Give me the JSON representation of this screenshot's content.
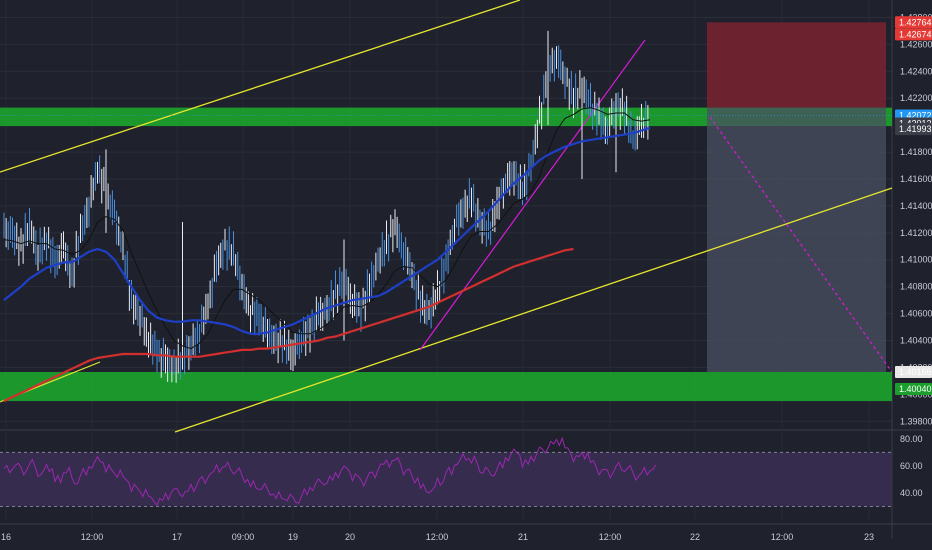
{
  "chart_data": [
    {
      "type": "candlestick",
      "instrument_price_axis": {
        "ticks": [
          "1.42800",
          "1.42600",
          "1.42400",
          "1.42200",
          "1.42000",
          "1.41800",
          "1.41600",
          "1.41400",
          "1.41200",
          "1.41000",
          "1.40800",
          "1.40600",
          "1.40400",
          "1.40200",
          "1.40000",
          "1.39800"
        ],
        "ylim": [
          1.3975,
          1.429
        ]
      },
      "x_ticks": [
        "16",
        "12:00",
        "17",
        "09:00",
        "19",
        "20",
        "12:00",
        "21",
        "12:00",
        "22",
        "12:00",
        "23"
      ],
      "price_badges": [
        {
          "label": "1.42764",
          "color": "#e53935"
        },
        {
          "label": "1.42674",
          "color": "#e53935"
        },
        {
          "label": "1.42072",
          "color": "#2196f3"
        },
        {
          "label": "06:30",
          "color": "#2196f3"
        },
        {
          "label": "1.42012",
          "color": "#3a3d48"
        },
        {
          "label": "1.41993",
          "color": "#3a3d48"
        },
        {
          "label": "1.40166",
          "color": "#e8e8e8"
        },
        {
          "label": "1.40040",
          "color": "#1b9e2c"
        }
      ],
      "last_price": 1.42072,
      "close_series": [
        1.4122,
        1.4118,
        1.411,
        1.4125,
        1.4105,
        1.4115,
        1.4098,
        1.4108,
        1.4088,
        1.412,
        1.414,
        1.4168,
        1.415,
        1.4132,
        1.4108,
        1.407,
        1.4058,
        1.4042,
        1.403,
        1.4025,
        1.402,
        1.4028,
        1.4035,
        1.4048,
        1.4065,
        1.4095,
        1.411,
        1.4105,
        1.408,
        1.4062,
        1.4058,
        1.4045,
        1.404,
        1.4038,
        1.403,
        1.4042,
        1.4048,
        1.4058,
        1.4062,
        1.4075,
        1.4085,
        1.407,
        1.4062,
        1.408,
        1.4098,
        1.4112,
        1.4125,
        1.4108,
        1.409,
        1.4068,
        1.406,
        1.4075,
        1.4098,
        1.4125,
        1.4138,
        1.4145,
        1.4128,
        1.412,
        1.414,
        1.4158,
        1.4165,
        1.415,
        1.417,
        1.4205,
        1.424,
        1.4252,
        1.4235,
        1.422,
        1.4228,
        1.4215,
        1.4205,
        1.4198,
        1.4215,
        1.421,
        1.419,
        1.42,
        1.4207
      ],
      "moving_averages": [
        {
          "color": "#111111",
          "values": [
            1.4115,
            1.4114,
            1.4112,
            1.4114,
            1.4112,
            1.4112,
            1.4108,
            1.4107,
            1.4104,
            1.4107,
            1.4115,
            1.4128,
            1.4132,
            1.413,
            1.4122,
            1.4105,
            1.409,
            1.4075,
            1.4062,
            1.405,
            1.404,
            1.4036,
            1.4034,
            1.4038,
            1.4045,
            1.4058,
            1.407,
            1.4078,
            1.4078,
            1.4074,
            1.407,
            1.4064,
            1.4058,
            1.4052,
            1.4046,
            1.4045,
            1.4045,
            1.4048,
            1.4052,
            1.4058,
            1.4065,
            1.4066,
            1.4065,
            1.4068,
            1.4074,
            1.4082,
            1.4092,
            1.4095,
            1.4094,
            1.4088,
            1.4082,
            1.408,
            1.4085,
            1.4096,
            1.4108,
            1.4118,
            1.4121,
            1.4121,
            1.4126,
            1.4134,
            1.4142,
            1.4145,
            1.415,
            1.4162,
            1.418,
            1.4196,
            1.4205,
            1.4208,
            1.4212,
            1.4213,
            1.4211,
            1.4208,
            1.4209,
            1.4209,
            1.4204,
            1.4203,
            1.4204
          ]
        },
        {
          "color": "#1e40c8",
          "values": [
            1.407,
            1.4075,
            1.408,
            1.4086,
            1.409,
            1.4094,
            1.4096,
            1.4098,
            1.4098,
            1.4102,
            1.4106,
            1.4108,
            1.4106,
            1.41,
            1.409,
            1.408,
            1.407,
            1.4062,
            1.4057,
            1.4055,
            1.4054,
            1.4054,
            1.4055,
            1.4055,
            1.4054,
            1.4053,
            1.4052,
            1.405,
            1.4047,
            1.4045,
            1.4045,
            1.4046,
            1.4048,
            1.405,
            1.4052,
            1.4055,
            1.4058,
            1.4061,
            1.4064,
            1.4066,
            1.4068,
            1.407,
            1.4071,
            1.4072,
            1.4073,
            1.4076,
            1.408,
            1.4084,
            1.4088,
            1.4092,
            1.4096,
            1.41,
            1.4106,
            1.4112,
            1.4118,
            1.4124,
            1.413,
            1.4136,
            1.4143,
            1.415,
            1.4157,
            1.4162,
            1.4168,
            1.4174,
            1.4178,
            1.4181,
            1.4184,
            1.4186,
            1.4188,
            1.4189,
            1.419,
            1.4191,
            1.4192,
            1.4193,
            1.4194,
            1.4196,
            1.4198
          ]
        },
        {
          "color": "#d32f2f",
          "values": [
            1.3995,
            1.3998,
            1.4001,
            1.4004,
            1.4007,
            1.401,
            1.4013,
            1.4016,
            1.4019,
            1.4022,
            1.4025,
            1.4027,
            1.4028,
            1.4029,
            1.403,
            1.403,
            1.403,
            1.403,
            1.4029,
            1.4029,
            1.4028,
            1.4028,
            1.4028,
            1.4028,
            1.4029,
            1.403,
            1.4031,
            1.4032,
            1.4033,
            1.4033,
            1.4034,
            1.4034,
            1.4035,
            1.4036,
            1.4037,
            1.4038,
            1.4039,
            1.404,
            1.4042,
            1.4043,
            1.4045,
            1.4047,
            1.4049,
            1.4051,
            1.4053,
            1.4055,
            1.4057,
            1.4059,
            1.4061,
            1.4063,
            1.4065,
            1.4068,
            1.4071,
            1.4074,
            1.4077,
            1.408,
            1.4083,
            1.4086,
            1.4089,
            1.4092,
            1.4095,
            1.4097,
            1.4099,
            1.4101,
            1.4103,
            1.4105,
            1.4107,
            1.4108
          ]
        }
      ],
      "zones": [
        {
          "name": "resistance",
          "y": [
            1.41993,
            1.4213
          ],
          "color": "#1b9e2c"
        },
        {
          "name": "support",
          "y": [
            1.3995,
            1.40166
          ],
          "color": "#1b9e2c"
        }
      ],
      "trade_box": {
        "stop": [
          1.4213,
          1.42764
        ],
        "target": [
          1.40166,
          1.4213
        ],
        "stop_color": "#7a2230",
        "target_color": "#4a5060"
      },
      "oscillator": {
        "ticks": [
          "80.00",
          "60.00",
          "40.00"
        ],
        "ylim": [
          20,
          85
        ],
        "band": [
          30,
          70
        ],
        "line_color": "#9c27b0",
        "values": [
          58,
          60,
          56,
          62,
          54,
          58,
          50,
          56,
          48,
          55,
          60,
          64,
          58,
          54,
          50,
          44,
          40,
          36,
          34,
          38,
          42,
          40,
          44,
          50,
          54,
          58,
          60,
          56,
          50,
          46,
          44,
          40,
          38,
          36,
          34,
          40,
          44,
          48,
          50,
          54,
          58,
          52,
          48,
          54,
          60,
          62,
          64,
          56,
          50,
          44,
          42,
          48,
          56,
          62,
          66,
          64,
          56,
          54,
          60,
          66,
          70,
          62,
          66,
          72,
          76,
          78,
          72,
          66,
          68,
          62,
          56,
          54,
          60,
          58,
          52,
          56,
          58
        ]
      }
    }
  ]
}
